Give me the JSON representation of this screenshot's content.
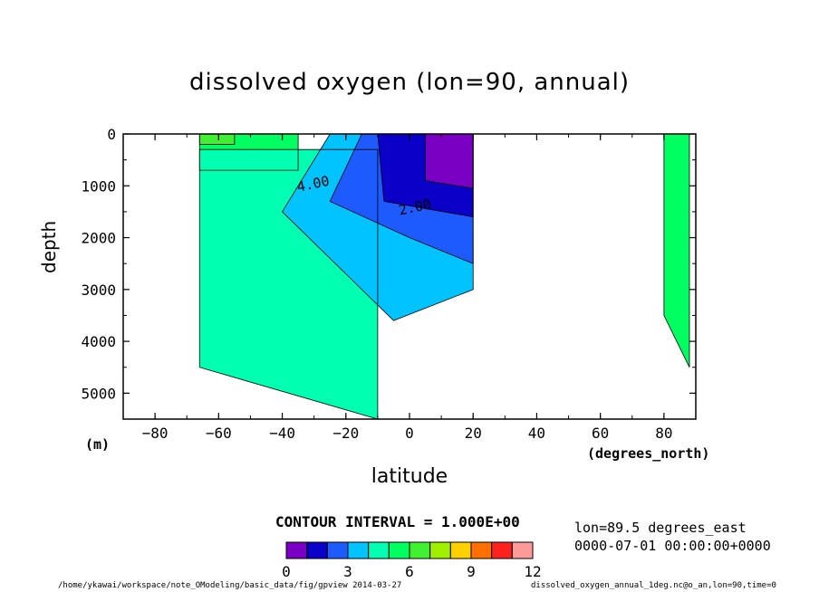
{
  "chart_data": {
    "type": "contour",
    "title": "dissolved oxygen (lon=90, annual)",
    "xlabel": "latitude",
    "xunit": "(degrees_north)",
    "ylabel": "depth",
    "yunit": "(m)",
    "xlim": [
      -90,
      90
    ],
    "ylim": [
      5500,
      0
    ],
    "xticks": [
      -80,
      -60,
      -40,
      -20,
      0,
      20,
      40,
      60,
      80
    ],
    "yticks": [
      0,
      1000,
      2000,
      3000,
      4000,
      5000
    ],
    "contour_interval_text": "CONTOUR INTERVAL = 1.000E+00",
    "contour_labels": [
      {
        "text": "4.00",
        "lat": -30,
        "depth": 1050
      },
      {
        "text": "2.00",
        "lat": 2,
        "depth": 1500
      }
    ],
    "colorbar": {
      "levels": [
        0,
        1,
        2,
        3,
        4,
        5,
        6,
        7,
        8,
        9,
        10,
        11,
        12
      ],
      "tick_labels": [
        "0",
        "3",
        "6",
        "9",
        "12"
      ],
      "tick_values": [
        0,
        3,
        6,
        9,
        12
      ],
      "colors": [
        "#7a00c4",
        "#0a00c8",
        "#1e5bff",
        "#00c3ff",
        "#00ffb0",
        "#00ff60",
        "#40f030",
        "#a0f000",
        "#ffd000",
        "#ff7000",
        "#ff2020",
        "#ff9a9a"
      ]
    },
    "regions": [
      {
        "color": "#00ff60",
        "band": "5-6",
        "polygon": [
          [
            -66,
            0
          ],
          [
            -35,
            0
          ],
          [
            -35,
            700
          ],
          [
            -66,
            700
          ]
        ]
      },
      {
        "color": "#00ffb0",
        "band": "4-5",
        "polygon": [
          [
            -66,
            300
          ],
          [
            -10,
            300
          ],
          [
            -10,
            5500
          ],
          [
            -66,
            4500
          ]
        ]
      },
      {
        "color": "#00c3ff",
        "band": "3-4",
        "polygon": [
          [
            -25,
            0
          ],
          [
            20,
            0
          ],
          [
            20,
            3000
          ],
          [
            -5,
            3600
          ],
          [
            -40,
            1500
          ]
        ]
      },
      {
        "color": "#1e5bff",
        "band": "2-3",
        "polygon": [
          [
            -15,
            0
          ],
          [
            20,
            0
          ],
          [
            20,
            2500
          ],
          [
            0,
            2000
          ],
          [
            -25,
            1300
          ]
        ]
      },
      {
        "color": "#0a00c8",
        "band": "1-2",
        "polygon": [
          [
            -10,
            0
          ],
          [
            20,
            0
          ],
          [
            20,
            1600
          ],
          [
            -8,
            1300
          ]
        ]
      },
      {
        "color": "#7a00c4",
        "band": "0-1",
        "polygon": [
          [
            5,
            0
          ],
          [
            20,
            0
          ],
          [
            20,
            1050
          ],
          [
            5,
            900
          ]
        ]
      },
      {
        "color": "#40f030",
        "band": "6-7",
        "polygon": [
          [
            -66,
            0
          ],
          [
            -55,
            0
          ],
          [
            -55,
            200
          ],
          [
            -66,
            200
          ]
        ]
      },
      {
        "color": "#00ff60",
        "band": "5-6",
        "polygon": [
          [
            80,
            0
          ],
          [
            88,
            0
          ],
          [
            88,
            4500
          ],
          [
            80,
            3500
          ]
        ]
      }
    ]
  },
  "info": {
    "lon_text": "lon=89.5 degrees_east",
    "time_text": "0000-07-01 00:00:00+0000"
  },
  "footer": {
    "left": "/home/ykawai/workspace/note_OModeling/basic_data/fig/gpview  2014-03-27",
    "right": "dissolved_oxygen_annual_1deg.nc@o_an,lon=90,time=0"
  }
}
